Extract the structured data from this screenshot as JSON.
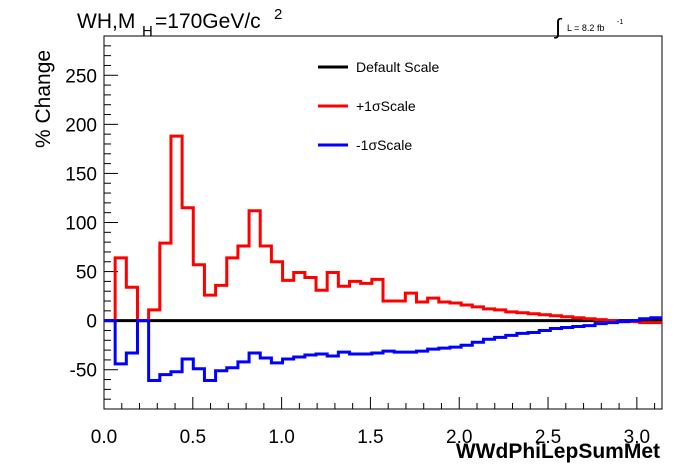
{
  "title_main": "WH,M",
  "title_sub": "H",
  "title_mass": "=170GeV/c",
  "title_sup": "2",
  "lumi_symbol": "∫",
  "lumi_text": "L = 8.2 fb",
  "lumi_sup": "-1",
  "chart_data": {
    "type": "line",
    "style": "step-histogram",
    "xlabel": "WWdPhiLepSumMet",
    "ylabel": "% Change",
    "xlim": [
      0.0,
      3.1416
    ],
    "ylim": [
      -90,
      290
    ],
    "x_ticks": [
      "0.0",
      "0.5",
      "1.0",
      "1.5",
      "2.0",
      "2.5",
      "3.0"
    ],
    "y_ticks": [
      "-50",
      "0",
      "50",
      "100",
      "150",
      "200",
      "250"
    ],
    "grid": false,
    "legend_position": "top-center",
    "bin_edges": [
      0.0,
      0.0628,
      0.1257,
      0.1885,
      0.2513,
      0.3142,
      0.377,
      0.4398,
      0.5027,
      0.5655,
      0.6283,
      0.6912,
      0.754,
      0.8168,
      0.8796,
      0.9425,
      1.0053,
      1.0681,
      1.131,
      1.1938,
      1.2566,
      1.3195,
      1.3823,
      1.4451,
      1.508,
      1.5708,
      1.6336,
      1.6965,
      1.7593,
      1.8221,
      1.885,
      1.9478,
      2.0106,
      2.0735,
      2.1363,
      2.1991,
      2.2619,
      2.3248,
      2.3876,
      2.4504,
      2.5133,
      2.5761,
      2.6389,
      2.7018,
      2.7646,
      2.8274,
      2.8903,
      2.9531,
      3.0159,
      3.0788,
      3.1416
    ],
    "series": [
      {
        "name": "Default Scale",
        "color": "#000000",
        "values": [
          0,
          0,
          0,
          0,
          0,
          0,
          0,
          0,
          0,
          0,
          0,
          0,
          0,
          0,
          0,
          0,
          0,
          0,
          0,
          0,
          0,
          0,
          0,
          0,
          0,
          0,
          0,
          0,
          0,
          0,
          0,
          0,
          0,
          0,
          0,
          0,
          0,
          0,
          0,
          0,
          0,
          0,
          0,
          0,
          0,
          0,
          0,
          0,
          0,
          0
        ]
      },
      {
        "name": "+1σScale",
        "color": "#ff0000",
        "values": [
          0,
          64,
          34,
          0,
          11,
          79,
          188,
          115,
          57,
          26,
          36,
          64,
          76,
          112,
          76,
          60,
          41,
          49,
          44,
          31,
          49,
          35,
          40,
          38,
          42,
          20,
          20,
          28,
          19,
          23,
          19,
          18,
          16,
          14,
          12,
          11,
          9,
          8,
          7,
          6,
          5,
          4,
          3,
          2,
          1,
          0,
          -1,
          -1,
          -2,
          -2
        ]
      },
      {
        "name": "-1σScale",
        "color": "#0000ff",
        "values": [
          0,
          -44,
          -33,
          0,
          -61,
          -55,
          -52,
          -39,
          -49,
          -61,
          -51,
          -48,
          -42,
          -33,
          -38,
          -43,
          -39,
          -37,
          -35,
          -34,
          -36,
          -32,
          -34,
          -34,
          -33,
          -31,
          -32,
          -32,
          -31,
          -29,
          -28,
          -27,
          -25,
          -22,
          -19,
          -17,
          -15,
          -13,
          -12,
          -10,
          -8,
          -7,
          -6,
          -5,
          -3,
          -2,
          -1,
          0,
          2,
          3
        ]
      }
    ]
  }
}
